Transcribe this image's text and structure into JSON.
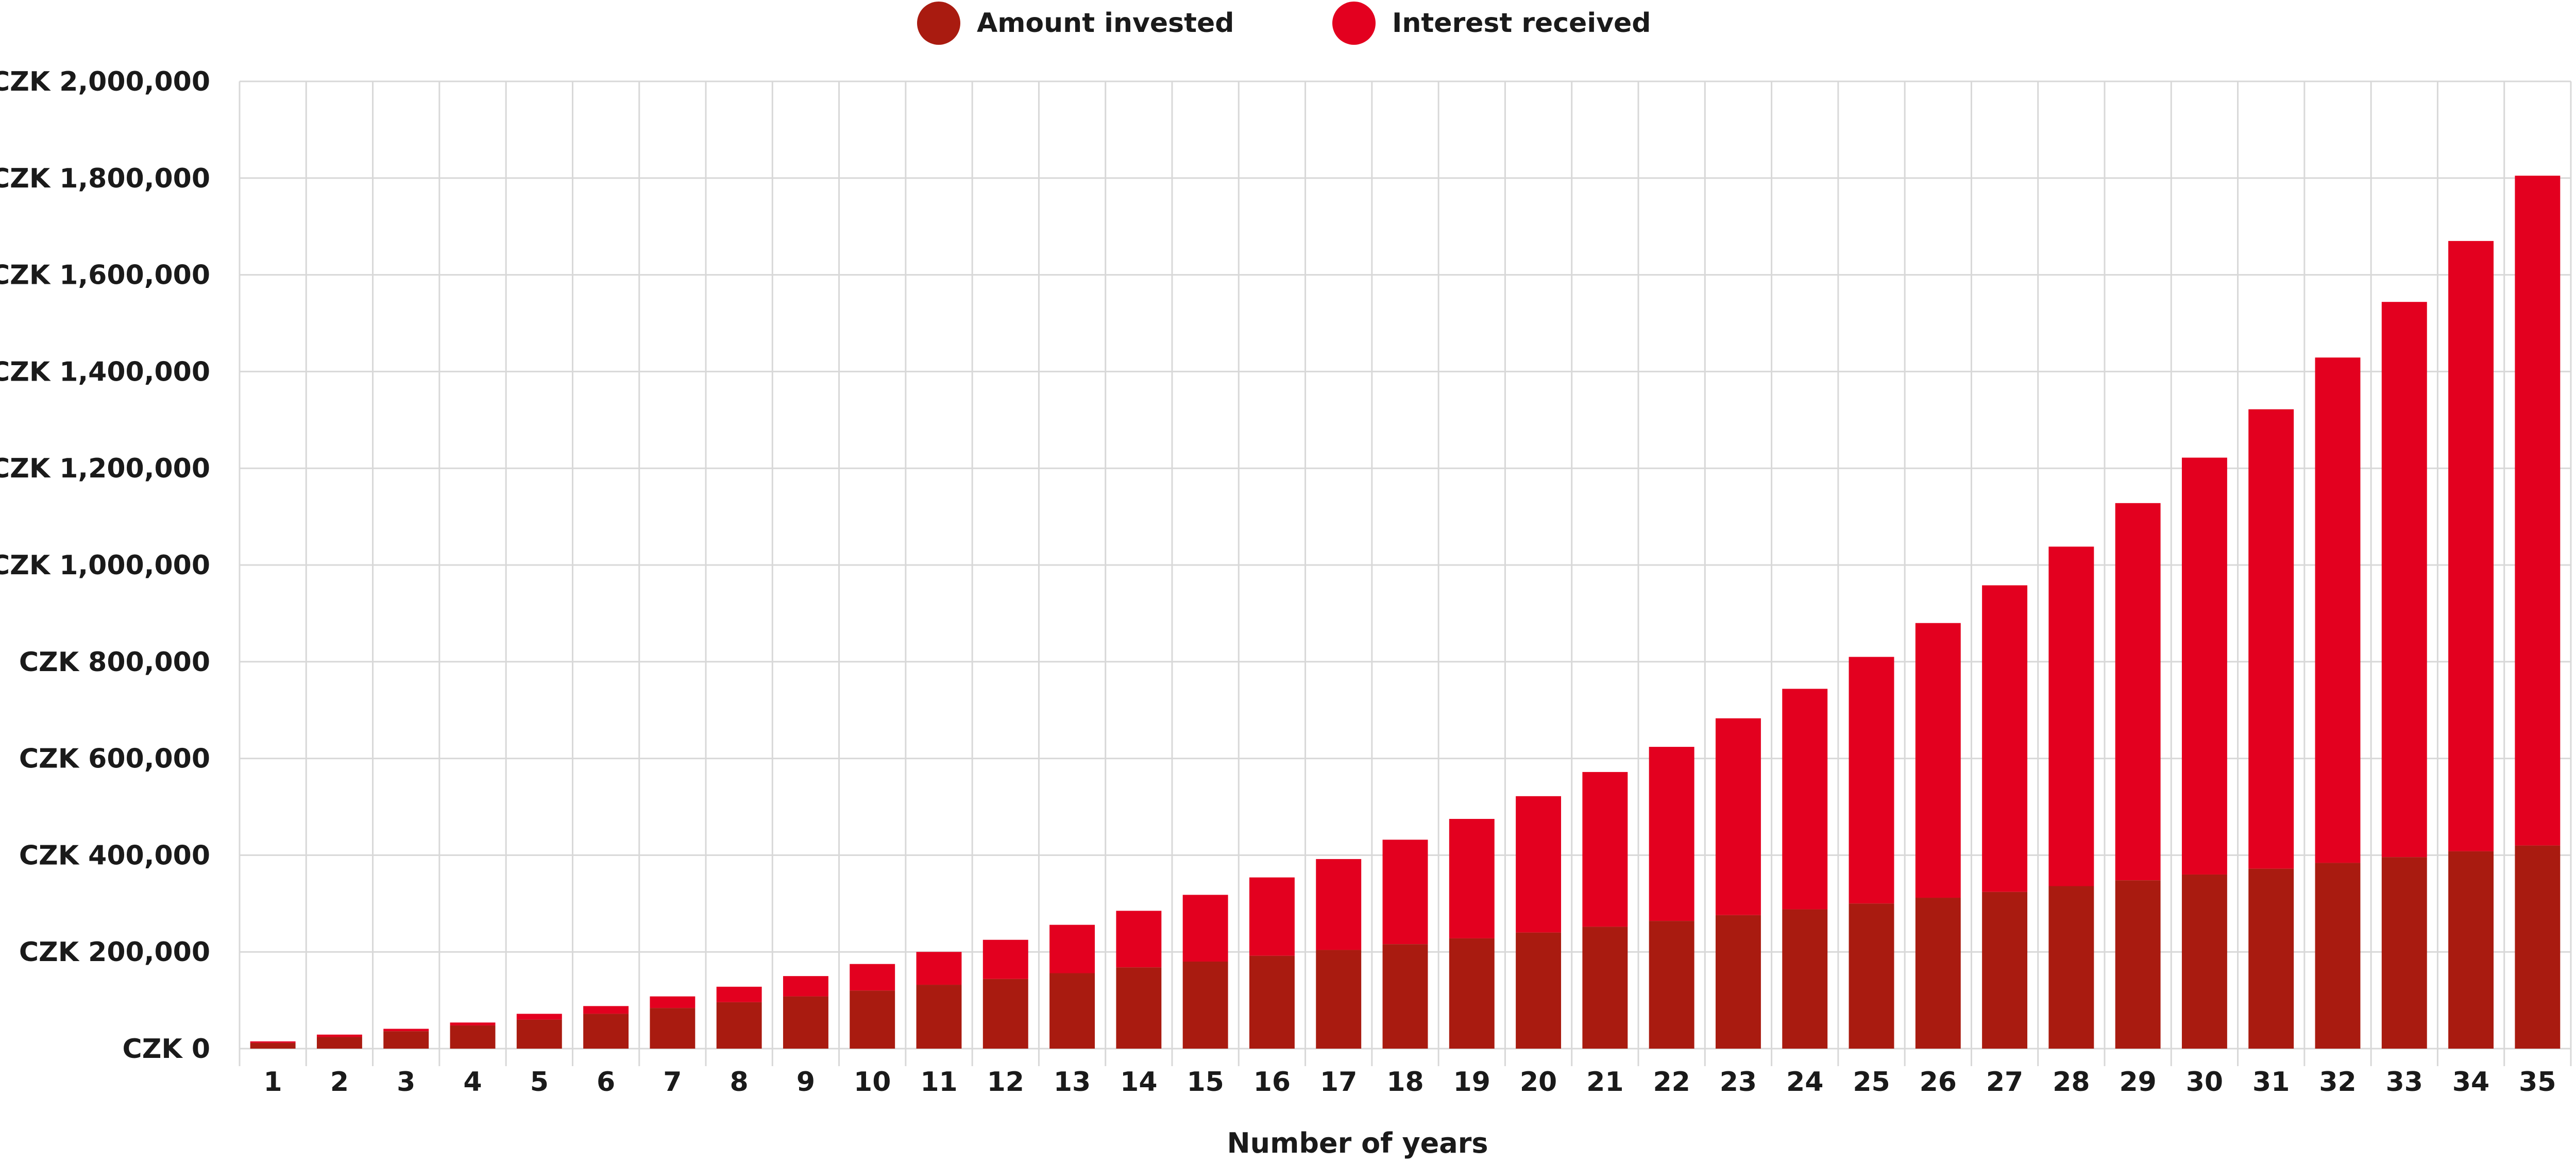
{
  "chart_data": {
    "type": "bar",
    "stacked": true,
    "xlabel": "Number of years",
    "ylabel": "",
    "title": "",
    "ylim": [
      0,
      2000000
    ],
    "y_ticks": [
      0,
      200000,
      400000,
      600000,
      800000,
      1000000,
      1200000,
      1400000,
      1600000,
      1800000,
      2000000
    ],
    "y_tick_labels": [
      "CZK 0",
      "CZK 200,000",
      "CZK 400,000",
      "CZK 600,000",
      "CZK 800,000",
      "CZK 1,000,000",
      "CZK 1,200,000",
      "CZK 1,400,000",
      "CZK 1,600,000",
      "CZK 1,800,000",
      "CZK 2,000,000"
    ],
    "grid": true,
    "legend_position": "top-center",
    "categories": [
      "1",
      "2",
      "3",
      "4",
      "5",
      "6",
      "7",
      "8",
      "9",
      "10",
      "11",
      "12",
      "13",
      "14",
      "15",
      "16",
      "17",
      "18",
      "19",
      "20",
      "21",
      "22",
      "23",
      "24",
      "25",
      "26",
      "27",
      "28",
      "29",
      "30",
      "31",
      "32",
      "33",
      "34",
      "35"
    ],
    "series": [
      {
        "name": "Amount invested",
        "color": "#a91b10",
        "values": [
          12000,
          24000,
          36000,
          48000,
          60000,
          72000,
          84000,
          96000,
          108000,
          120000,
          132000,
          144000,
          156000,
          168000,
          180000,
          192000,
          204000,
          216000,
          228000,
          240000,
          252000,
          264000,
          276000,
          288000,
          300000,
          312000,
          324000,
          336000,
          348000,
          360000,
          372000,
          384000,
          396000,
          408000,
          420000
        ]
      },
      {
        "name": "Interest received",
        "color": "#e3001f",
        "values": [
          3000,
          5000,
          5000,
          6000,
          12000,
          16000,
          24000,
          32000,
          42000,
          55000,
          68000,
          81000,
          100000,
          117000,
          138000,
          162000,
          188000,
          216000,
          247000,
          282000,
          320000,
          360000,
          407000,
          456000,
          510000,
          568000,
          634000,
          702000,
          780000,
          862000,
          950000,
          1045000,
          1148000,
          1262000,
          1385000
        ]
      }
    ]
  }
}
